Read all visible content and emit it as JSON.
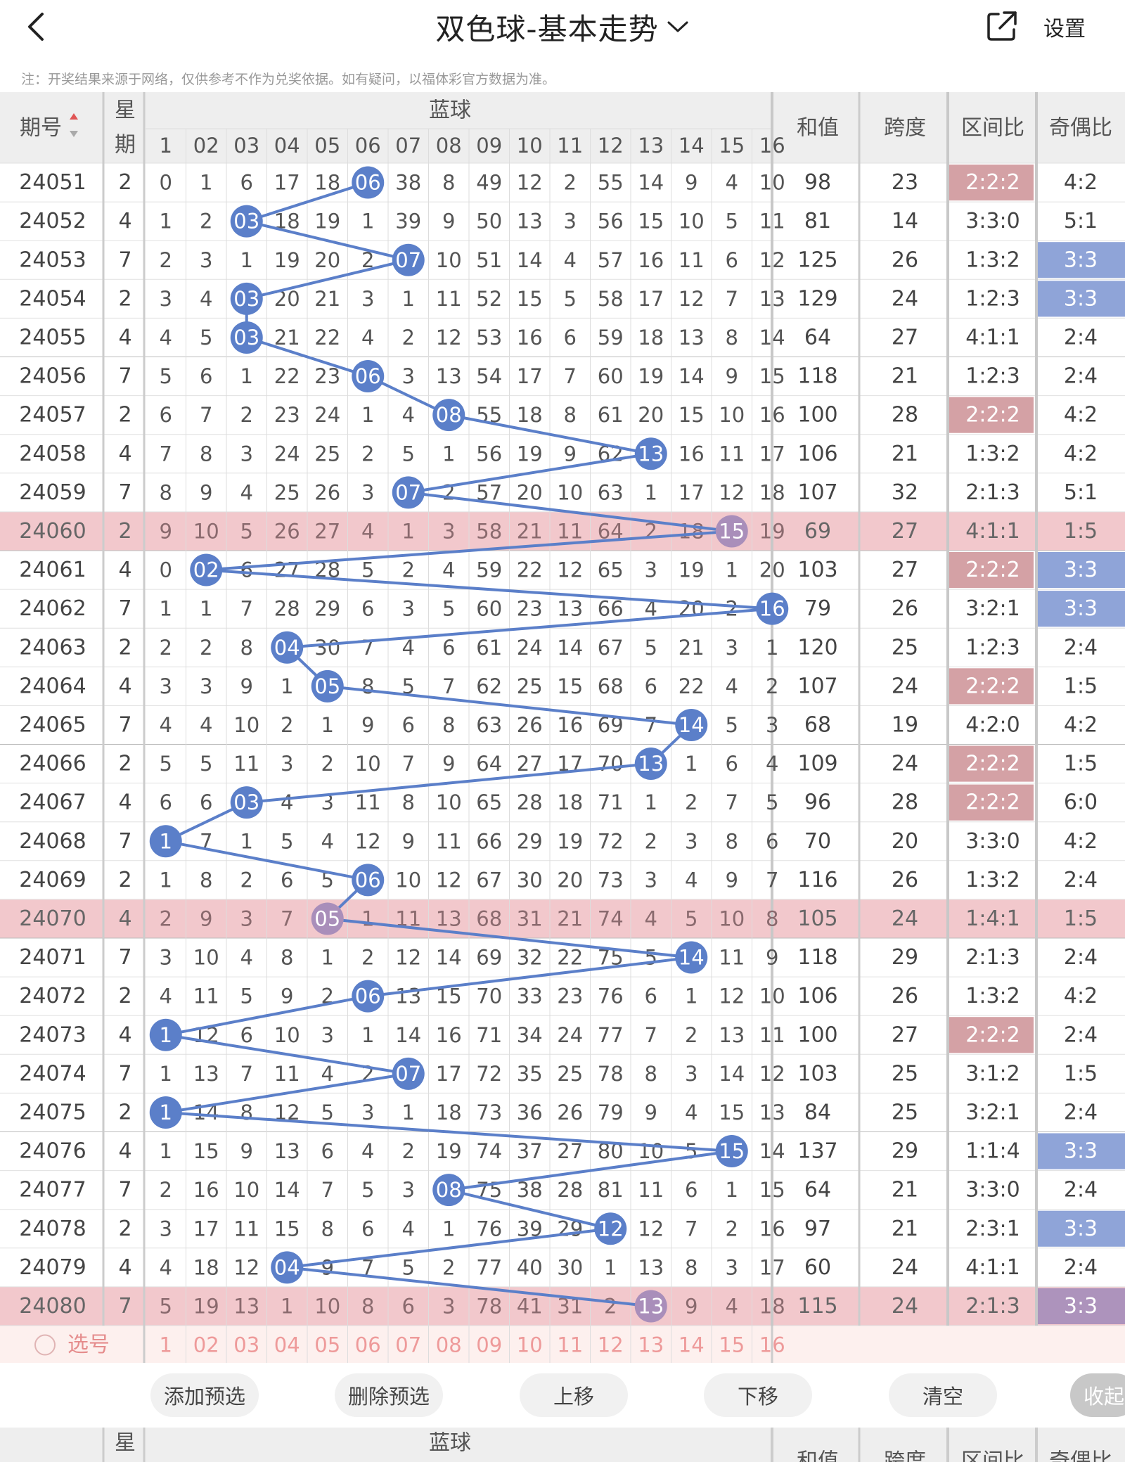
{
  "header": {
    "title": "双色球-基本走势",
    "settings_label": "设置",
    "back_icon": "chevron-left-icon",
    "share_icon": "share-icon"
  },
  "note": "注：开奖结果来源于网络，仅供参考不作为兑奖依据。如有疑问，以福体彩官方数据为准。",
  "table_header": {
    "period": "期号",
    "weekday_top": "星",
    "weekday_bottom": "期",
    "blue_ball": "蓝球",
    "sum": "和值",
    "span": "跨度",
    "zone_ratio": "区间比",
    "odd_even": "奇偶比",
    "sort_icon": "sort-arrows-icon"
  },
  "blue_columns": [
    "1",
    "02",
    "03",
    "04",
    "05",
    "06",
    "07",
    "08",
    "09",
    "10",
    "11",
    "12",
    "13",
    "14",
    "15",
    "16"
  ],
  "rows": [
    {
      "period": "24051",
      "weekday": "2",
      "hit": 6,
      "cells": [
        "0",
        "1",
        "6",
        "17",
        "18",
        "06",
        "38",
        "8",
        "49",
        "12",
        "2",
        "55",
        "14",
        "9",
        "4",
        "10"
      ],
      "sum": "98",
      "span": "23",
      "zone": "2:2:2",
      "zone_hl": true,
      "oe": "4:2",
      "oe_hl": false,
      "hl": false
    },
    {
      "period": "24052",
      "weekday": "4",
      "hit": 3,
      "cells": [
        "1",
        "2",
        "03",
        "18",
        "19",
        "1",
        "39",
        "9",
        "50",
        "13",
        "3",
        "56",
        "15",
        "10",
        "5",
        "11"
      ],
      "sum": "81",
      "span": "14",
      "zone": "3:3:0",
      "zone_hl": false,
      "oe": "5:1",
      "oe_hl": false,
      "hl": false
    },
    {
      "period": "24053",
      "weekday": "7",
      "hit": 7,
      "cells": [
        "2",
        "3",
        "1",
        "19",
        "20",
        "2",
        "07",
        "10",
        "51",
        "14",
        "4",
        "57",
        "16",
        "11",
        "6",
        "12"
      ],
      "sum": "125",
      "span": "26",
      "zone": "1:3:2",
      "zone_hl": false,
      "oe": "3:3",
      "oe_hl": true,
      "hl": false
    },
    {
      "period": "24054",
      "weekday": "2",
      "hit": 3,
      "cells": [
        "3",
        "4",
        "03",
        "20",
        "21",
        "3",
        "1",
        "11",
        "52",
        "15",
        "5",
        "58",
        "17",
        "12",
        "7",
        "13"
      ],
      "sum": "129",
      "span": "24",
      "zone": "1:2:3",
      "zone_hl": false,
      "oe": "3:3",
      "oe_hl": true,
      "hl": false
    },
    {
      "period": "24055",
      "weekday": "4",
      "hit": 3,
      "cells": [
        "4",
        "5",
        "03",
        "21",
        "22",
        "4",
        "2",
        "12",
        "53",
        "16",
        "6",
        "59",
        "18",
        "13",
        "8",
        "14"
      ],
      "sum": "64",
      "span": "27",
      "zone": "4:1:1",
      "zone_hl": false,
      "oe": "2:4",
      "oe_hl": false,
      "hl": false
    },
    {
      "period": "24056",
      "weekday": "7",
      "hit": 6,
      "cells": [
        "5",
        "6",
        "1",
        "22",
        "23",
        "06",
        "3",
        "13",
        "54",
        "17",
        "7",
        "60",
        "19",
        "14",
        "9",
        "15"
      ],
      "sum": "118",
      "span": "21",
      "zone": "1:2:3",
      "zone_hl": false,
      "oe": "2:4",
      "oe_hl": false,
      "hl": false
    },
    {
      "period": "24057",
      "weekday": "2",
      "hit": 8,
      "cells": [
        "6",
        "7",
        "2",
        "23",
        "24",
        "1",
        "4",
        "08",
        "55",
        "18",
        "8",
        "61",
        "20",
        "15",
        "10",
        "16"
      ],
      "sum": "100",
      "span": "28",
      "zone": "2:2:2",
      "zone_hl": true,
      "oe": "4:2",
      "oe_hl": false,
      "hl": false
    },
    {
      "period": "24058",
      "weekday": "4",
      "hit": 13,
      "cells": [
        "7",
        "8",
        "3",
        "24",
        "25",
        "2",
        "5",
        "1",
        "56",
        "19",
        "9",
        "62",
        "13",
        "16",
        "11",
        "17"
      ],
      "sum": "106",
      "span": "21",
      "zone": "1:3:2",
      "zone_hl": false,
      "oe": "4:2",
      "oe_hl": false,
      "hl": false
    },
    {
      "period": "24059",
      "weekday": "7",
      "hit": 7,
      "cells": [
        "8",
        "9",
        "4",
        "25",
        "26",
        "3",
        "07",
        "2",
        "57",
        "20",
        "10",
        "63",
        "1",
        "17",
        "12",
        "18"
      ],
      "sum": "107",
      "span": "32",
      "zone": "2:1:3",
      "zone_hl": false,
      "oe": "5:1",
      "oe_hl": false,
      "hl": false
    },
    {
      "period": "24060",
      "weekday": "2",
      "hit": 15,
      "cells": [
        "9",
        "10",
        "5",
        "26",
        "27",
        "4",
        "1",
        "3",
        "58",
        "21",
        "11",
        "64",
        "2",
        "18",
        "15",
        "19"
      ],
      "sum": "69",
      "span": "27",
      "zone": "4:1:1",
      "zone_hl": false,
      "oe": "1:5",
      "oe_hl": false,
      "hl": true
    },
    {
      "period": "24061",
      "weekday": "4",
      "hit": 2,
      "cells": [
        "0",
        "02",
        "6",
        "27",
        "28",
        "5",
        "2",
        "4",
        "59",
        "22",
        "12",
        "65",
        "3",
        "19",
        "1",
        "20"
      ],
      "sum": "103",
      "span": "27",
      "zone": "2:2:2",
      "zone_hl": true,
      "oe": "3:3",
      "oe_hl": true,
      "hl": false
    },
    {
      "period": "24062",
      "weekday": "7",
      "hit": 16,
      "cells": [
        "1",
        "1",
        "7",
        "28",
        "29",
        "6",
        "3",
        "5",
        "60",
        "23",
        "13",
        "66",
        "4",
        "20",
        "2",
        "16"
      ],
      "sum": "79",
      "span": "26",
      "zone": "3:2:1",
      "zone_hl": false,
      "oe": "3:3",
      "oe_hl": true,
      "hl": false
    },
    {
      "period": "24063",
      "weekday": "2",
      "hit": 4,
      "cells": [
        "2",
        "2",
        "8",
        "04",
        "30",
        "7",
        "4",
        "6",
        "61",
        "24",
        "14",
        "67",
        "5",
        "21",
        "3",
        "1"
      ],
      "sum": "120",
      "span": "25",
      "zone": "1:2:3",
      "zone_hl": false,
      "oe": "2:4",
      "oe_hl": false,
      "hl": false
    },
    {
      "period": "24064",
      "weekday": "4",
      "hit": 5,
      "cells": [
        "3",
        "3",
        "9",
        "1",
        "05",
        "8",
        "5",
        "7",
        "62",
        "25",
        "15",
        "68",
        "6",
        "22",
        "4",
        "2"
      ],
      "sum": "107",
      "span": "24",
      "zone": "2:2:2",
      "zone_hl": true,
      "oe": "1:5",
      "oe_hl": false,
      "hl": false
    },
    {
      "period": "24065",
      "weekday": "7",
      "hit": 14,
      "cells": [
        "4",
        "4",
        "10",
        "2",
        "1",
        "9",
        "6",
        "8",
        "63",
        "26",
        "16",
        "69",
        "7",
        "14",
        "5",
        "3"
      ],
      "sum": "68",
      "span": "19",
      "zone": "4:2:0",
      "zone_hl": false,
      "oe": "4:2",
      "oe_hl": false,
      "hl": false
    },
    {
      "period": "24066",
      "weekday": "2",
      "hit": 13,
      "cells": [
        "5",
        "5",
        "11",
        "3",
        "2",
        "10",
        "7",
        "9",
        "64",
        "27",
        "17",
        "70",
        "13",
        "1",
        "6",
        "4"
      ],
      "sum": "109",
      "span": "24",
      "zone": "2:2:2",
      "zone_hl": true,
      "oe": "1:5",
      "oe_hl": false,
      "hl": false
    },
    {
      "period": "24067",
      "weekday": "4",
      "hit": 3,
      "cells": [
        "6",
        "6",
        "03",
        "4",
        "3",
        "11",
        "8",
        "10",
        "65",
        "28",
        "18",
        "71",
        "1",
        "2",
        "7",
        "5"
      ],
      "sum": "96",
      "span": "28",
      "zone": "2:2:2",
      "zone_hl": true,
      "oe": "6:0",
      "oe_hl": false,
      "hl": false
    },
    {
      "period": "24068",
      "weekday": "7",
      "hit": 1,
      "cells": [
        "1",
        "7",
        "1",
        "5",
        "4",
        "12",
        "9",
        "11",
        "66",
        "29",
        "19",
        "72",
        "2",
        "3",
        "8",
        "6"
      ],
      "sum": "70",
      "span": "20",
      "zone": "3:3:0",
      "zone_hl": false,
      "oe": "4:2",
      "oe_hl": false,
      "hl": false
    },
    {
      "period": "24069",
      "weekday": "2",
      "hit": 6,
      "cells": [
        "1",
        "8",
        "2",
        "6",
        "5",
        "06",
        "10",
        "12",
        "67",
        "30",
        "20",
        "73",
        "3",
        "4",
        "9",
        "7"
      ],
      "sum": "116",
      "span": "26",
      "zone": "1:3:2",
      "zone_hl": false,
      "oe": "2:4",
      "oe_hl": false,
      "hl": false
    },
    {
      "period": "24070",
      "weekday": "4",
      "hit": 5,
      "cells": [
        "2",
        "9",
        "3",
        "7",
        "05",
        "1",
        "11",
        "13",
        "68",
        "31",
        "21",
        "74",
        "4",
        "5",
        "10",
        "8"
      ],
      "sum": "105",
      "span": "24",
      "zone": "1:4:1",
      "zone_hl": false,
      "oe": "1:5",
      "oe_hl": false,
      "hl": true
    },
    {
      "period": "24071",
      "weekday": "7",
      "hit": 14,
      "cells": [
        "3",
        "10",
        "4",
        "8",
        "1",
        "2",
        "12",
        "14",
        "69",
        "32",
        "22",
        "75",
        "5",
        "14",
        "11",
        "9"
      ],
      "sum": "118",
      "span": "29",
      "zone": "2:1:3",
      "zone_hl": false,
      "oe": "2:4",
      "oe_hl": false,
      "hl": false
    },
    {
      "period": "24072",
      "weekday": "2",
      "hit": 6,
      "cells": [
        "4",
        "11",
        "5",
        "9",
        "2",
        "06",
        "13",
        "15",
        "70",
        "33",
        "23",
        "76",
        "6",
        "1",
        "12",
        "10"
      ],
      "sum": "106",
      "span": "26",
      "zone": "1:3:2",
      "zone_hl": false,
      "oe": "4:2",
      "oe_hl": false,
      "hl": false
    },
    {
      "period": "24073",
      "weekday": "4",
      "hit": 1,
      "cells": [
        "1",
        "12",
        "6",
        "10",
        "3",
        "1",
        "14",
        "16",
        "71",
        "34",
        "24",
        "77",
        "7",
        "2",
        "13",
        "11"
      ],
      "sum": "100",
      "span": "27",
      "zone": "2:2:2",
      "zone_hl": true,
      "oe": "2:4",
      "oe_hl": false,
      "hl": false
    },
    {
      "period": "24074",
      "weekday": "7",
      "hit": 7,
      "cells": [
        "1",
        "13",
        "7",
        "11",
        "4",
        "2",
        "07",
        "17",
        "72",
        "35",
        "25",
        "78",
        "8",
        "3",
        "14",
        "12"
      ],
      "sum": "103",
      "span": "25",
      "zone": "3:1:2",
      "zone_hl": false,
      "oe": "1:5",
      "oe_hl": false,
      "hl": false
    },
    {
      "period": "24075",
      "weekday": "2",
      "hit": 1,
      "cells": [
        "1",
        "14",
        "8",
        "12",
        "5",
        "3",
        "1",
        "18",
        "73",
        "36",
        "26",
        "79",
        "9",
        "4",
        "15",
        "13"
      ],
      "sum": "84",
      "span": "25",
      "zone": "3:2:1",
      "zone_hl": false,
      "oe": "2:4",
      "oe_hl": false,
      "hl": false
    },
    {
      "period": "24076",
      "weekday": "4",
      "hit": 15,
      "cells": [
        "1",
        "15",
        "9",
        "13",
        "6",
        "4",
        "2",
        "19",
        "74",
        "37",
        "27",
        "80",
        "10",
        "5",
        "15",
        "14"
      ],
      "sum": "137",
      "span": "29",
      "zone": "1:1:4",
      "zone_hl": false,
      "oe": "3:3",
      "oe_hl": true,
      "hl": false
    },
    {
      "period": "24077",
      "weekday": "7",
      "hit": 8,
      "cells": [
        "2",
        "16",
        "10",
        "14",
        "7",
        "5",
        "3",
        "08",
        "75",
        "38",
        "28",
        "81",
        "11",
        "6",
        "1",
        "15"
      ],
      "sum": "64",
      "span": "21",
      "zone": "3:3:0",
      "zone_hl": false,
      "oe": "2:4",
      "oe_hl": false,
      "hl": false
    },
    {
      "period": "24078",
      "weekday": "2",
      "hit": 12,
      "cells": [
        "3",
        "17",
        "11",
        "15",
        "8",
        "6",
        "4",
        "1",
        "76",
        "39",
        "29",
        "12",
        "12",
        "7",
        "2",
        "16"
      ],
      "sum": "97",
      "span": "21",
      "zone": "2:3:1",
      "zone_hl": false,
      "oe": "3:3",
      "oe_hl": true,
      "hl": false
    },
    {
      "period": "24079",
      "weekday": "4",
      "hit": 4,
      "cells": [
        "4",
        "18",
        "12",
        "04",
        "9",
        "7",
        "5",
        "2",
        "77",
        "40",
        "30",
        "1",
        "13",
        "8",
        "3",
        "17"
      ],
      "sum": "60",
      "span": "24",
      "zone": "4:1:1",
      "zone_hl": false,
      "oe": "2:4",
      "oe_hl": false,
      "hl": false
    },
    {
      "period": "24080",
      "weekday": "7",
      "hit": 13,
      "cells": [
        "5",
        "19",
        "13",
        "1",
        "10",
        "8",
        "6",
        "3",
        "78",
        "41",
        "31",
        "2",
        "13",
        "9",
        "4",
        "18"
      ],
      "sum": "115",
      "span": "24",
      "zone": "2:1:3",
      "zone_hl": false,
      "oe": "3:3",
      "oe_hl": true,
      "hl": true
    }
  ],
  "select_row": {
    "label": "选号"
  },
  "controls": {
    "add": "添加预选",
    "delete": "删除预选",
    "up": "上移",
    "down": "下移",
    "clear": "清空",
    "collapse": "收起"
  },
  "colors": {
    "ball": "#5b7fc9",
    "highlight_row": "#f2c8cc",
    "zone_highlight": "#d4a1a5",
    "oe_highlight": "#8fa4d8",
    "header_bg": "#eeeeee"
  }
}
